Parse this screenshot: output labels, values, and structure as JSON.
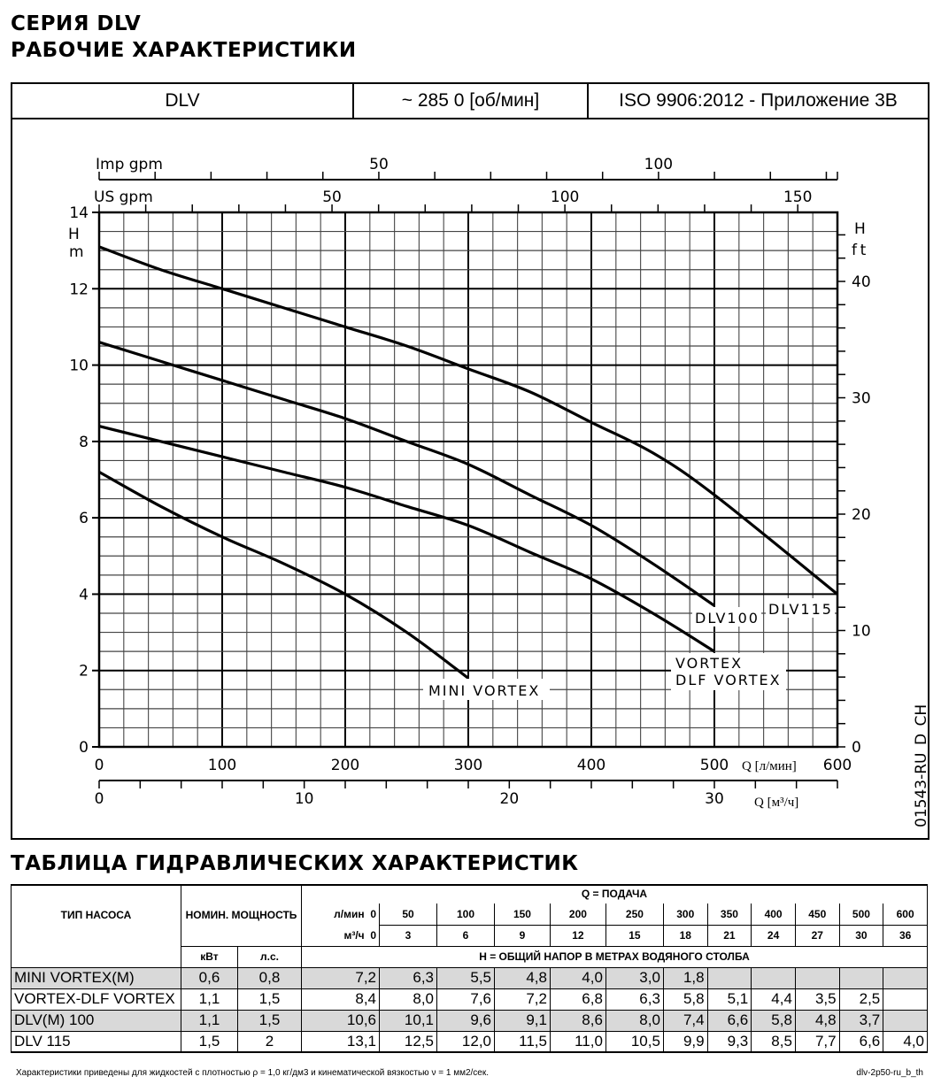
{
  "title": {
    "line1": "СЕРИЯ DLV",
    "line2": "РАБОЧИЕ ХАРАКТЕРИСТИКИ"
  },
  "header": {
    "model": "DLV",
    "speed": "~ 285 0 [об/мин]",
    "standard": "ISO 9906:2012 - Приложение 3В"
  },
  "chart_data": {
    "type": "line",
    "x_unit_label": "Q [л/мин]",
    "x2_unit_label": "Q [м³/ч]",
    "imp_label": "Imp gpm",
    "us_label": "US gpm",
    "y_label": [
      "H",
      "m"
    ],
    "y2_label": [
      "H",
      "ft"
    ],
    "xlim": [
      0,
      600
    ],
    "ylim": [
      0,
      14
    ],
    "x_ticks": [
      0,
      100,
      200,
      300,
      400,
      500,
      600
    ],
    "x2_ticks": [
      0,
      10,
      20,
      30
    ],
    "imp_ticks": [
      50,
      100
    ],
    "us_ticks": [
      50,
      100,
      150
    ],
    "y_ticks": [
      0,
      2,
      4,
      6,
      8,
      10,
      12,
      14
    ],
    "y2_ticks": [
      0,
      10,
      20,
      30,
      40
    ],
    "grid": true,
    "series": [
      {
        "name": "MINI VORTEX",
        "x": [
          0,
          50,
          100,
          150,
          200,
          250,
          300
        ],
        "y": [
          7.2,
          6.3,
          5.5,
          4.8,
          4.0,
          3.0,
          1.8
        ]
      },
      {
        "name": "VORTEX DLF VORTEX",
        "x": [
          0,
          50,
          100,
          150,
          200,
          250,
          300,
          350,
          400,
          450,
          500
        ],
        "y": [
          8.4,
          8.0,
          7.6,
          7.2,
          6.8,
          6.3,
          5.8,
          5.1,
          4.4,
          3.5,
          2.5
        ]
      },
      {
        "name": "DLV100",
        "x": [
          0,
          50,
          100,
          150,
          200,
          250,
          300,
          350,
          400,
          450,
          500
        ],
        "y": [
          10.6,
          10.1,
          9.6,
          9.1,
          8.6,
          8.0,
          7.4,
          6.6,
          5.8,
          4.8,
          3.7
        ]
      },
      {
        "name": "DLV115",
        "x": [
          0,
          50,
          100,
          150,
          200,
          250,
          300,
          350,
          400,
          450,
          500,
          600
        ],
        "y": [
          13.1,
          12.5,
          12.0,
          11.5,
          11.0,
          10.5,
          9.9,
          9.3,
          8.5,
          7.7,
          6.6,
          4.0
        ]
      }
    ],
    "curve_labels": {
      "mini": "MINI VORTEX",
      "vortex1": "VORTEX",
      "vortex2": "DLF VORTEX",
      "dlv100": "DLV100",
      "dlv115": "DLV115"
    },
    "drawing_code": "01543-RU_D_CH"
  },
  "table": {
    "title": "ТАБЛИЦА ГИДРАВЛИЧЕСКИХ ХАРАКТЕРИСТИК",
    "col_type": "ТИП НАСОСА",
    "col_power": "НОМИН. МОЩНОСТЬ",
    "col_kw": "кВт",
    "col_hp": "л.с.",
    "q_header": "Q = ПОДАЧА",
    "lmin_label": "л/мин",
    "m3h_label": "м³/ч",
    "h_header": "H = ОБЩИЙ НАПОР В МЕТРАХ ВОДЯНОГО СТОЛБА",
    "lmin": [
      "0",
      "50",
      "100",
      "150",
      "200",
      "250",
      "300",
      "350",
      "400",
      "450",
      "500",
      "600"
    ],
    "m3h": [
      "0",
      "3",
      "6",
      "9",
      "12",
      "15",
      "18",
      "21",
      "24",
      "27",
      "30",
      "36"
    ],
    "rows": [
      {
        "type": "MINI VORTEX(M)",
        "kw": "0,6",
        "hp": "0,8",
        "h": [
          "7,2",
          "6,3",
          "5,5",
          "4,8",
          "4,0",
          "3,0",
          "1,8",
          "",
          "",
          "",
          "",
          ""
        ]
      },
      {
        "type": "VORTEX-DLF VORTEX",
        "kw": "1,1",
        "hp": "1,5",
        "h": [
          "8,4",
          "8,0",
          "7,6",
          "7,2",
          "6,8",
          "6,3",
          "5,8",
          "5,1",
          "4,4",
          "3,5",
          "2,5",
          ""
        ]
      },
      {
        "type": "DLV(M) 100",
        "kw": "1,1",
        "hp": "1,5",
        "h": [
          "10,6",
          "10,1",
          "9,6",
          "9,1",
          "8,6",
          "8,0",
          "7,4",
          "6,6",
          "5,8",
          "4,8",
          "3,7",
          ""
        ]
      },
      {
        "type": "DLV 115",
        "kw": "1,5",
        "hp": "2",
        "h": [
          "13,1",
          "12,5",
          "12,0",
          "11,5",
          "11,0",
          "10,5",
          "9,9",
          "9,3",
          "8,5",
          "7,7",
          "6,6",
          "4,0"
        ]
      }
    ]
  },
  "footer": {
    "note": "Характеристики приведены для жидкостей с плотностью ρ = 1,0 кг/дм3  и кинематической вязкостью ν = 1 мм2/сек.",
    "code": "dlv-2p50-ru_b_th"
  }
}
